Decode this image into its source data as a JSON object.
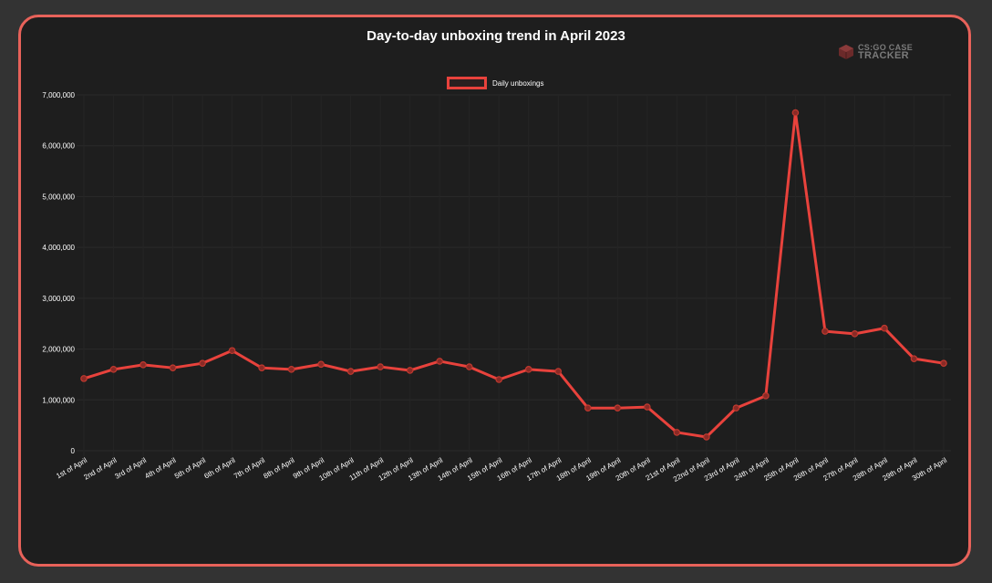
{
  "chart_data": {
    "type": "line",
    "title": "Day-to-day unboxing trend in April 2023",
    "xlabel": "",
    "ylabel": "",
    "ylim": [
      0,
      7000000
    ],
    "grid": true,
    "legend_position": "top",
    "yticks": [
      "0",
      "1,000,000",
      "2,000,000",
      "3,000,000",
      "4,000,000",
      "5,000,000",
      "6,000,000",
      "7,000,000"
    ],
    "categories": [
      "1st of April",
      "2nd of April",
      "3rd of April",
      "4th of April",
      "5th of April",
      "6th of April",
      "7th of April",
      "8th of April",
      "9th of April",
      "10th of April",
      "11th of April",
      "12th of April",
      "13th of April",
      "14th of April",
      "15th of April",
      "16th of April",
      "17th of April",
      "18th of April",
      "19th of April",
      "20th of April",
      "21st of April",
      "22nd of April",
      "23rd of April",
      "24th of April",
      "25th of April",
      "26th of April",
      "27th of April",
      "28th of April",
      "29th of April",
      "30th of April"
    ],
    "series": [
      {
        "name": "Daily unboxings",
        "color": "#e8423c",
        "values": [
          1420000,
          1600000,
          1690000,
          1630000,
          1720000,
          1970000,
          1630000,
          1600000,
          1700000,
          1560000,
          1650000,
          1580000,
          1760000,
          1650000,
          1400000,
          1600000,
          1560000,
          840000,
          840000,
          860000,
          360000,
          270000,
          840000,
          1080000,
          6650000,
          2350000,
          2300000,
          2410000,
          1810000,
          1720000
        ]
      }
    ]
  },
  "header": {
    "title": "Day-to-day unboxing trend in April 2023",
    "logo_line1": "CS:GO CASE",
    "logo_line2": "TRACKER"
  },
  "legend": {
    "label": "Daily unboxings"
  },
  "colors": {
    "accent": "#e8625a",
    "line": "#e8423c",
    "card_bg": "#1e1e1e",
    "page_bg": "#333333"
  }
}
